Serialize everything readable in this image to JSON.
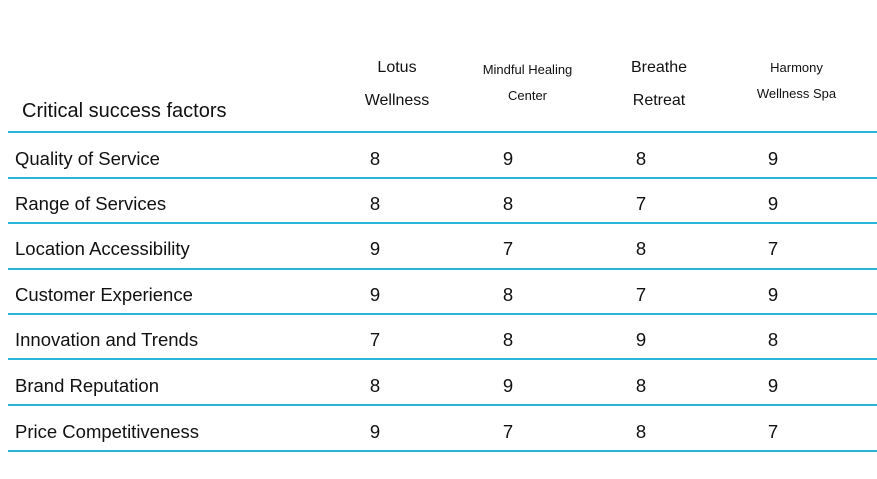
{
  "table": {
    "title": "Critical success factors",
    "columns": [
      {
        "line1": "Lotus",
        "line2": "Wellness"
      },
      {
        "line1": "Mindful Healing",
        "line2": "Center"
      },
      {
        "line1": "Breathe",
        "line2": "Retreat"
      },
      {
        "line1": "Harmony",
        "line2": "Wellness Spa"
      }
    ],
    "rows": [
      {
        "label": "Quality of Service",
        "values": [
          "8",
          "9",
          "8",
          "9"
        ]
      },
      {
        "label": "Range of Services",
        "values": [
          "8",
          "8",
          "7",
          "9"
        ]
      },
      {
        "label": "Location Accessibility",
        "values": [
          "9",
          "7",
          "8",
          "7"
        ]
      },
      {
        "label": "Customer Experience",
        "values": [
          "9",
          "8",
          "7",
          "9"
        ]
      },
      {
        "label": "Innovation and Trends",
        "values": [
          "7",
          "8",
          "9",
          "8"
        ]
      },
      {
        "label": "Brand Reputation",
        "values": [
          "8",
          "9",
          "8",
          "9"
        ]
      },
      {
        "label": "Price Competitiveness",
        "values": [
          "9",
          "7",
          "8",
          "7"
        ]
      }
    ]
  },
  "colors": {
    "rule": "#2bb5d8",
    "text": "#111111",
    "background": "#ffffff"
  }
}
